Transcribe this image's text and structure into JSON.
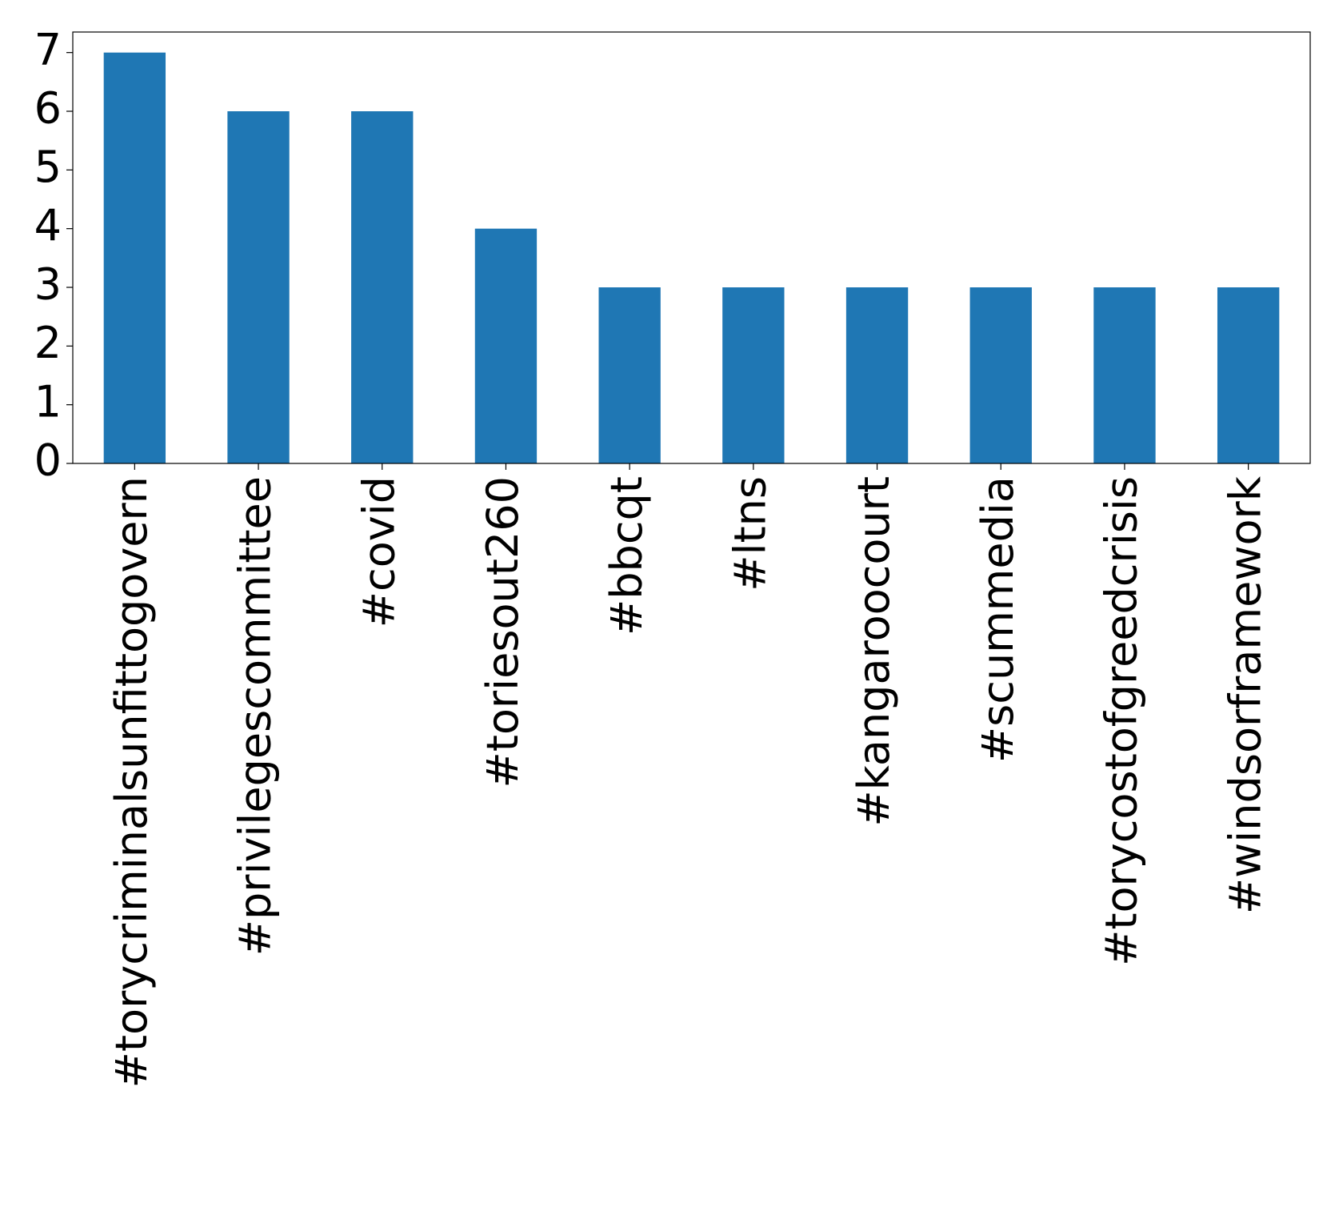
{
  "chart_data": {
    "type": "bar",
    "categories": [
      "#torycriminalsunfittogovern",
      "#privilegescommittee",
      "#covid",
      "#toriesout260",
      "#bbcqt",
      "#ltns",
      "#kangaroocourt",
      "#scummedia",
      "#torycostofgreedcrisis",
      "#windsorframework"
    ],
    "values": [
      7,
      6,
      6,
      4,
      3,
      3,
      3,
      3,
      3,
      3
    ],
    "color": "#1f77b4",
    "ylim": [
      0,
      7.35
    ],
    "yticks": [
      0,
      1,
      2,
      3,
      4,
      5,
      6,
      7
    ],
    "grid": false
  }
}
